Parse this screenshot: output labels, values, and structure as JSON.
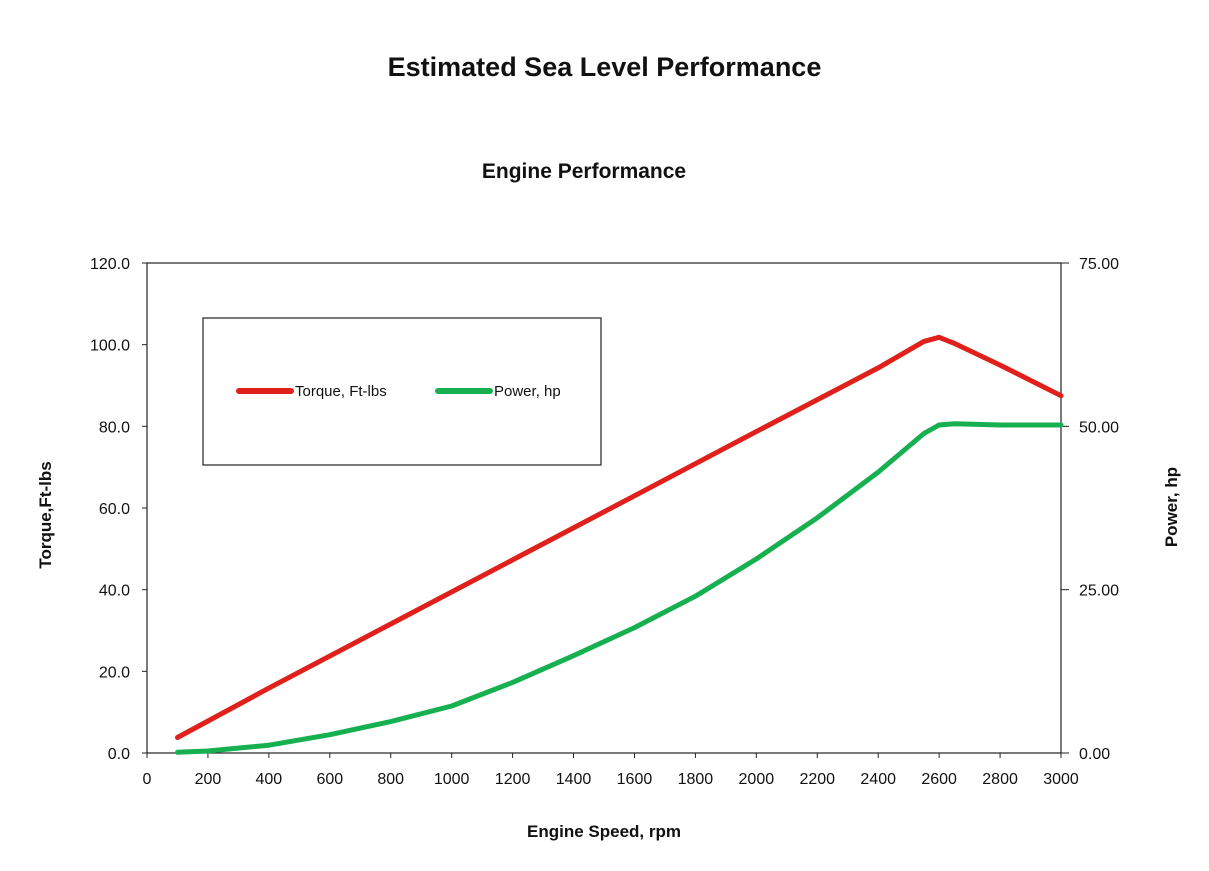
{
  "page": {
    "title": "Estimated Sea Level Performance"
  },
  "chart_data": {
    "type": "line",
    "title": "Engine Performance",
    "xlabel": "Engine Speed, rpm",
    "ylabel_left": "Torque,Ft-lbs",
    "ylabel_right": "Power, hp",
    "xlim": [
      0,
      3000
    ],
    "ylim_left": [
      0,
      120
    ],
    "ylim_right": [
      0,
      75
    ],
    "x_ticks": [
      "0",
      "200",
      "400",
      "600",
      "800",
      "1000",
      "1200",
      "1400",
      "1600",
      "1800",
      "2000",
      "2200",
      "2400",
      "2600",
      "2800",
      "3000"
    ],
    "y_left_ticks": [
      "0.0",
      "20.0",
      "40.0",
      "60.0",
      "80.0",
      "100.0",
      "120.0"
    ],
    "y_right_ticks": [
      "0.00",
      "25.00",
      "50.00",
      "75.00"
    ],
    "grid": false,
    "legend_placement": "upper-left",
    "series": [
      {
        "name": "Torque, Ft-lbs",
        "axis": "left",
        "color": "#e0201b",
        "x": [
          100,
          400,
          800,
          1200,
          1600,
          2000,
          2400,
          2550,
          2600,
          2650,
          2800,
          3000
        ],
        "y": [
          3.8,
          15.9,
          31.6,
          47.3,
          63,
          78.7,
          94.3,
          100.8,
          101.8,
          100.3,
          95,
          87.5
        ]
      },
      {
        "name": "Power, hp",
        "axis": "right",
        "color": "#17b050",
        "x": [
          100,
          200,
          400,
          600,
          800,
          1000,
          1200,
          1400,
          1600,
          1800,
          2000,
          2200,
          2400,
          2550,
          2600,
          2650,
          2800,
          3000
        ],
        "y": [
          0.1,
          0.3,
          1.2,
          2.8,
          4.8,
          7.2,
          10.8,
          14.9,
          19.2,
          24,
          29.7,
          36,
          43,
          48.9,
          50.2,
          50.4,
          50.2,
          50.2
        ]
      }
    ]
  }
}
